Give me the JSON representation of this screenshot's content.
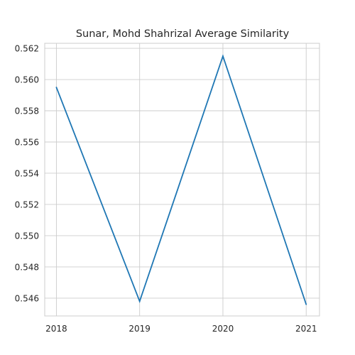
{
  "chart_data": {
    "type": "line",
    "title": "Sunar, Mohd Shahrizal Average Similarity",
    "xlabel": "",
    "ylabel": "",
    "x": [
      "2018",
      "2019",
      "2020",
      "2021"
    ],
    "x_values": [
      2018,
      2019,
      2020,
      2021
    ],
    "y_ticks": [
      "0.546",
      "0.548",
      "0.550",
      "0.552",
      "0.554",
      "0.556",
      "0.558",
      "0.560",
      "0.562"
    ],
    "y_tick_values": [
      0.546,
      0.548,
      0.55,
      0.552,
      0.554,
      0.556,
      0.558,
      0.56,
      0.562
    ],
    "xlim": [
      2017.86,
      2021.16
    ],
    "ylim": [
      0.54486,
      0.56232
    ],
    "grid": true,
    "series": [
      {
        "name": "Average Similarity",
        "color": "#1f77b4",
        "values": [
          0.5595,
          0.5458,
          0.5615,
          0.5456
        ]
      }
    ]
  }
}
